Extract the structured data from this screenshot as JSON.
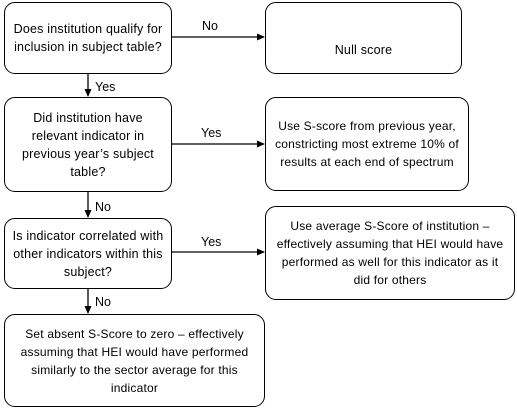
{
  "boxes": {
    "q_qualify": "Does institution qualify for inclusion in subject table?",
    "null_score": "Null score",
    "q_prev_year": "Did institution have relevant indicator in previous year’s subject table?",
    "use_prev": "Use S-score from previous year, constricting most extreme 10% of results at each end of spectrum",
    "q_correlated": "Is indicator correlated with other indicators within this subject?",
    "use_average": "Use average S-Score of institution – effectively assuming that HEI would have performed as well for this indicator as it did for others",
    "set_zero": "Set absent S-Score to zero – effectively assuming that HEI would have performed similarly to the sector average for this indicator"
  },
  "labels": {
    "no_1": "No",
    "yes_1": "Yes",
    "yes_2": "Yes",
    "no_2": "No",
    "yes_3": "Yes",
    "no_3": "No"
  }
}
